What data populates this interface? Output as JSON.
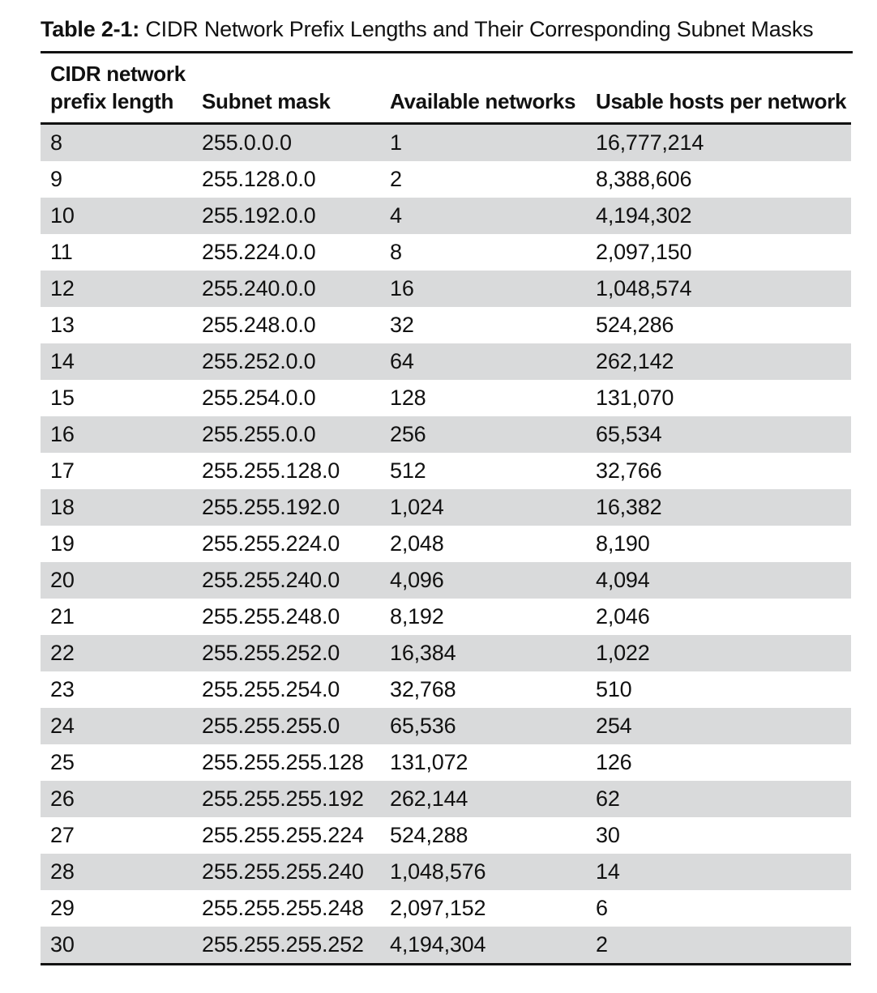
{
  "caption": {
    "label": "Table 2-1:",
    "text": " CIDR Network Prefix Lengths and Their Corresponding Subnet Masks"
  },
  "table": {
    "headers": [
      [
        "CIDR network",
        "prefix length"
      ],
      [
        "Subnet mask"
      ],
      [
        "Available networks"
      ],
      [
        "Usable hosts per network"
      ]
    ],
    "rows": [
      [
        "8",
        "255.0.0.0",
        "1",
        "16,777,214"
      ],
      [
        "9",
        "255.128.0.0",
        "2",
        "8,388,606"
      ],
      [
        "10",
        "255.192.0.0",
        "4",
        "4,194,302"
      ],
      [
        "11",
        "255.224.0.0",
        "8",
        "2,097,150"
      ],
      [
        "12",
        "255.240.0.0",
        "16",
        "1,048,574"
      ],
      [
        "13",
        "255.248.0.0",
        "32",
        "524,286"
      ],
      [
        "14",
        "255.252.0.0",
        "64",
        "262,142"
      ],
      [
        "15",
        "255.254.0.0",
        "128",
        "131,070"
      ],
      [
        "16",
        "255.255.0.0",
        "256",
        "65,534"
      ],
      [
        "17",
        "255.255.128.0",
        "512",
        "32,766"
      ],
      [
        "18",
        "255.255.192.0",
        "1,024",
        "16,382"
      ],
      [
        "19",
        "255.255.224.0",
        "2,048",
        "8,190"
      ],
      [
        "20",
        "255.255.240.0",
        "4,096",
        "4,094"
      ],
      [
        "21",
        "255.255.248.0",
        "8,192",
        "2,046"
      ],
      [
        "22",
        "255.255.252.0",
        "16,384",
        "1,022"
      ],
      [
        "23",
        "255.255.254.0",
        "32,768",
        "510"
      ],
      [
        "24",
        "255.255.255.0",
        "65,536",
        "254"
      ],
      [
        "25",
        "255.255.255.128",
        "131,072",
        "126"
      ],
      [
        "26",
        "255.255.255.192",
        "262,144",
        "62"
      ],
      [
        "27",
        "255.255.255.224",
        "524,288",
        "30"
      ],
      [
        "28",
        "255.255.255.240",
        "1,048,576",
        "14"
      ],
      [
        "29",
        "255.255.255.248",
        "2,097,152",
        "6"
      ],
      [
        "30",
        "255.255.255.252",
        "4,194,304",
        "2"
      ]
    ]
  },
  "colors": {
    "stripe": "#d9dadb",
    "rule": "#111111"
  }
}
